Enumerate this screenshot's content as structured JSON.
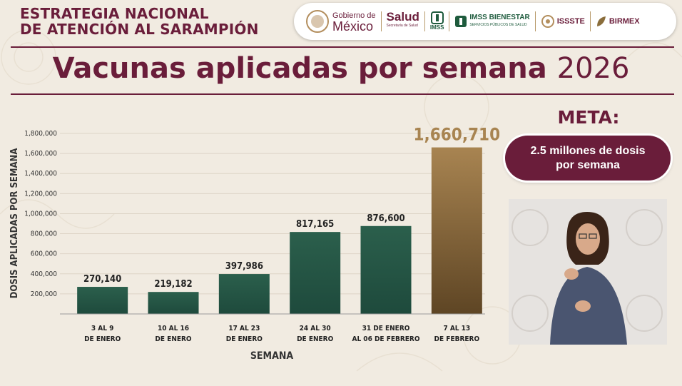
{
  "header": {
    "title_line1": "ESTRATEGIA NACIONAL",
    "title_line2": "DE ATENCIÓN AL SARAMPIÓN"
  },
  "logos": {
    "gobierno_line1": "Gobierno de",
    "gobierno_line2": "México",
    "salud": "Salud",
    "salud_sub": "Secretaría de Salud",
    "imss": "IMSS",
    "imss_bienestar": "IMSS BIENESTAR",
    "imss_bienestar_sub": "SERVICIOS PÚBLICOS DE SALUD",
    "issste": "ISSSTE",
    "birmex": "BIRMEX"
  },
  "title": {
    "text": "Vacunas aplicadas por semana",
    "year": "2026"
  },
  "meta": {
    "title": "META:",
    "text": "2.5 millones de dosis por semana"
  },
  "chart_data": {
    "type": "bar",
    "ylabel": "DOSIS APLICADAS POR SEMANA",
    "xlabel": "SEMANA",
    "ylim": [
      0,
      1800000
    ],
    "yticks": [
      "200,000",
      "400,000",
      "600,000",
      "800,000",
      "1,000,000",
      "1,200,000",
      "1,400,000",
      "1,600,000",
      "1,800,000"
    ],
    "categories": [
      [
        "3 AL 9",
        "DE ENERO"
      ],
      [
        "10 AL 16",
        "DE ENERO"
      ],
      [
        "17 AL 23",
        "DE ENERO"
      ],
      [
        "24 AL 30",
        "DE ENERO"
      ],
      [
        "31 DE ENERO",
        "AL 06 DE FEBRERO"
      ],
      [
        "7 AL 13",
        "DE FEBRERO"
      ]
    ],
    "values": [
      270140,
      219182,
      397986,
      817165,
      876600,
      1660710
    ],
    "value_labels": [
      "270,140",
      "219,182",
      "397,986",
      "817,165",
      "876,600",
      "1,660,710"
    ],
    "colors": {
      "bar": "#1e4a3c",
      "highlight_bar": "#a88451",
      "text": "#222222"
    }
  }
}
